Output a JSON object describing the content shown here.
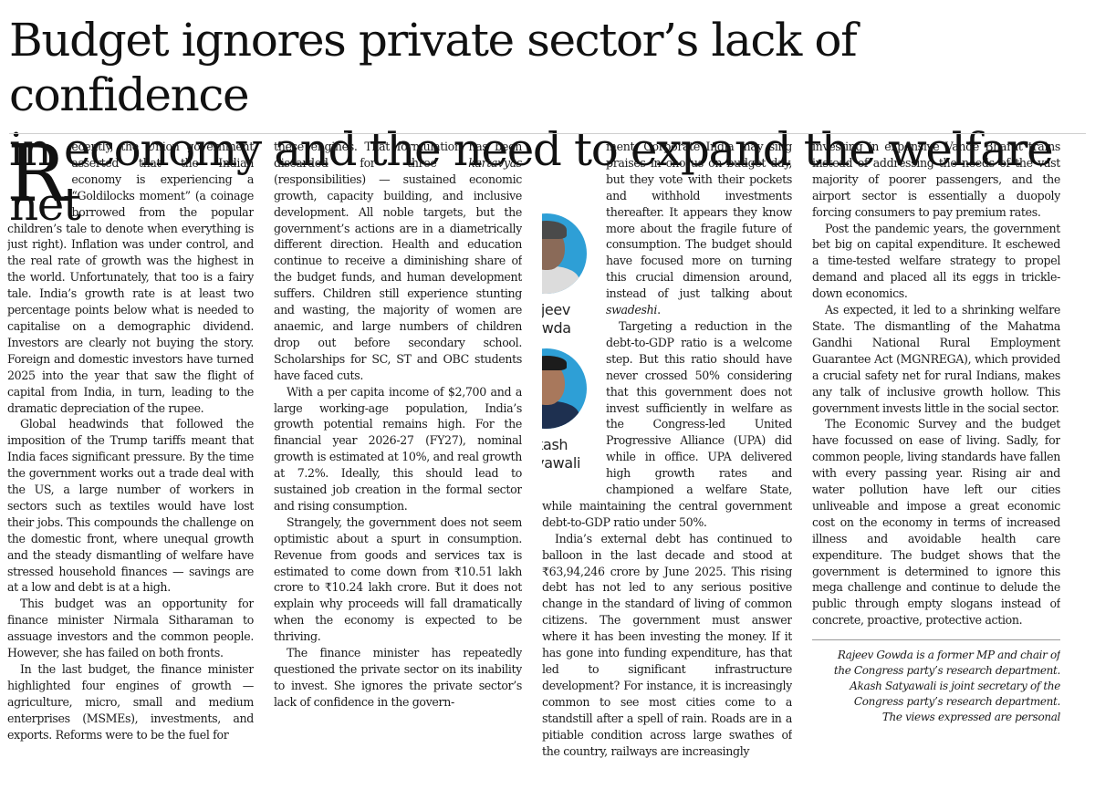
{
  "headline": {
    "line1": "Budget ignores private sector’s lack of confidence",
    "line2": "in economy and the need to expand the welfare net"
  },
  "authors": [
    {
      "first": "Rajeev",
      "last": "Gowda"
    },
    {
      "first": "Akash",
      "last": "Satyawali"
    }
  ],
  "col1": {
    "dropcap": "R",
    "p0": "ecently, the Union government asserted that the Indian economy is experiencing a “Goldilocks moment” (a coinage borrowed from the popular children’s tale to denote when everything is just right). Inflation was under control, and the real rate of growth was the highest in the world. Unfortunately, that too is a fairy tale. India’s growth rate is at least two percentage points below what is needed to capitalise on a demographic dividend. Investors are clearly not buying the story. Foreign and domestic investors have turned 2025 into the year that saw the flight of capital from India, in turn, leading to the dramatic depreciation of the rupee.",
    "p1": "Global headwinds that followed the imposition of the Trump tariffs meant that India faces significant pressure. By the time the government works out a trade deal with the US, a large number of workers in sectors such as textiles would have lost their jobs. This compounds the challenge on the domestic front, where unequal growth and the steady dismantling of welfare have stressed household finances — savings are at a low and debt is at a high.",
    "p2": "This budget was an opportunity for finance minister Nirmala Sitharaman to assuage investors and the common people. However, she has failed on both fronts.",
    "p3": "In the last budget, the finance minister highlighted four engines of growth — agriculture, micro, small and medium enterprises (MSMEs), investments, and exports. Reforms were to be the fuel for"
  },
  "col2": {
    "p0a": "these engines. That formulation has been discarded for three ",
    "p0b": "kartavyas",
    "p0c": " (responsibilities) — sustained economic growth, capacity building, and inclusive development. All noble targets, but the government’s actions are in a diametrically different direction. Health and education continue to receive a diminishing share of the budget funds, and human development suffers. Children still experience stunting and wasting, the majority of women are anaemic, and large numbers of children drop out before secondary school. Scholarships for SC, ST and OBC students have faced cuts.",
    "p1": "With a per capita income of $2,700 and a large working-age population, India’s growth potential remains high. For the financial year 2026-27 (FY27), nominal growth is estimated at 10%, and real growth at 7.2%. Ideally, this should lead to sustained job creation in the formal sector and rising consumption.",
    "p2": "Strangely, the government does not seem optimistic about a spurt in consumption. Revenue from goods and services tax is estimated to come down from ₹10.51 lakh crore to ₹10.24 lakh crore. But it does not explain why proceeds will fall dramatically when the economy is expected to be thriving.",
    "p3": "The finance minister has repeatedly questioned the private sector on its inability to invest. She ignores the private sector’s lack of confidence in the govern-"
  },
  "col3": {
    "p0a": "ment. Corporate India may sing praises in chorus on budget day, but they vote with their pockets and withhold investments thereafter. It appears they know more about the fragile future of consumption. The budget should have focused more on turning this crucial dimension around, instead of just talking about ",
    "p0b": "swadeshi",
    "p0c": ".",
    "p1": "Targeting a reduction in the debt-to-GDP ratio is a welcome step. But this ratio should have never crossed 50% considering that this government does not invest sufficiently in welfare as the Congress-led United Progressive Alliance (UPA) did while in office. UPA delivered high growth rates and championed a welfare State, while maintaining the central government debt-to-GDP ratio under 50%.",
    "p2": "India’s external debt has continued to balloon in the last decade and stood at ₹63,94,246 crore by June 2025. This rising debt has not led to any serious positive change in the standard of living of common citizens. The government must answer where it has been investing the money. If it has gone into funding expenditure, has that led to significant infrastructure development? For instance, it is increasingly common to see most cities come to a standstill after a spell of rain. Roads are in a pitiable condition across large swathes of the country, railways are increasingly"
  },
  "col4": {
    "p0": "investing in expensive Vande Bharat trains instead of addressing the needs of the vast majority of poorer passengers, and the airport sector is essentially a duopoly forcing consumers to pay premium rates.",
    "p1": "Post the pandemic years, the government bet big on capital expenditure. It eschewed a time-tested welfare strategy to propel demand and placed all its eggs in trickle-down economics.",
    "p2": "As expected, it led to a shrinking welfare State. The dismantling of the Mahatma Gandhi National Rural Employment Guarantee Act (MGNREGA), which provided a crucial safety net for rural Indians, makes any talk of inclusive growth hollow. This government invests little in the social sector.",
    "p3": "The Economic Survey and the budget have focussed on ease of living. Sadly, for common people, living standards have fallen with every passing year. Rising air and water pollution have left our cities unliveable and impose a great economic cost on the economy in terms of increased illness and avoidable health care expenditure. The budget shows that the government is determined to ignore this mega challenge and continue to delude the public through empty slogans instead of concrete, proactive, protective action.",
    "footnote": [
      "Rajeev Gowda is a former MP and chair of",
      "the Congress party’s research department.",
      "Akash Satyawali is joint secretary of the",
      "Congress party’s research department.",
      "The views expressed are personal"
    ]
  }
}
